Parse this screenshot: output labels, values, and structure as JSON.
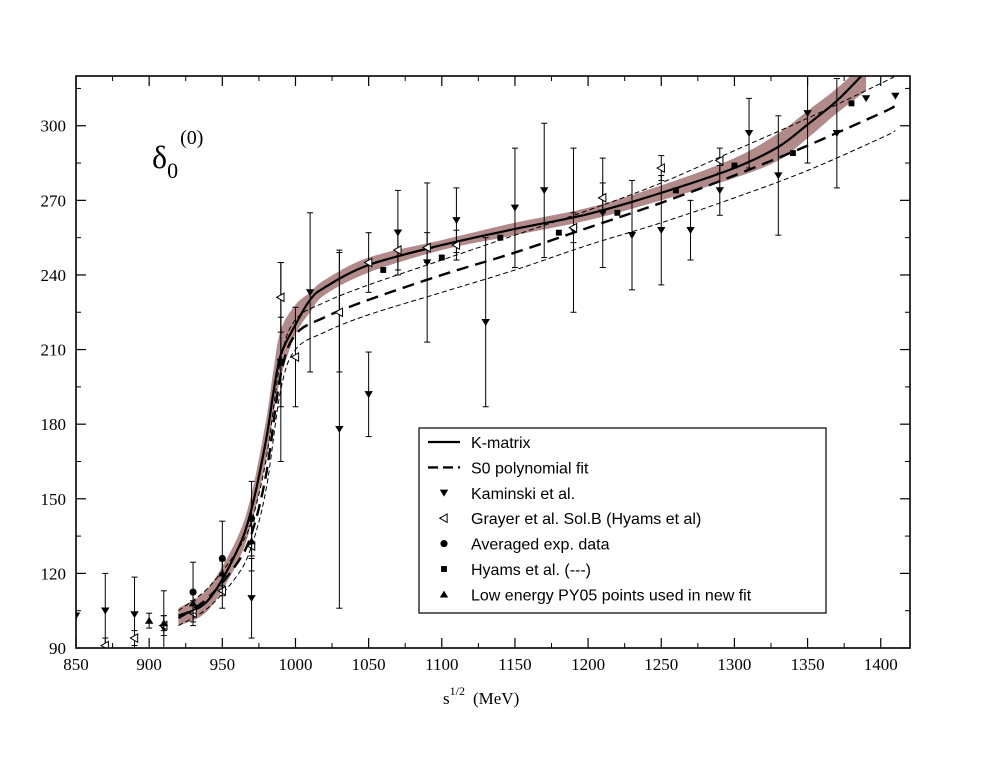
{
  "chart_data": {
    "type": "scatter",
    "title": "δ0(0)",
    "title_main": "δ",
    "title_sub": "0",
    "title_sup": "(0)",
    "xlabel_base": "s",
    "xlabel_sup": "1/2",
    "xlabel_unit": "(MeV)",
    "ylabel": "",
    "xlim": [
      850,
      1420
    ],
    "ylim": [
      90,
      320
    ],
    "xticks": [
      850,
      900,
      950,
      1000,
      1050,
      1100,
      1150,
      1200,
      1250,
      1300,
      1350,
      1400
    ],
    "yticks": [
      90,
      120,
      150,
      180,
      210,
      240,
      270,
      300
    ],
    "grid": false,
    "legend_position": "bottom-right",
    "band": {
      "name": "K-matrix uncertainty band",
      "color": "#a57575",
      "x": [
        920,
        940,
        960,
        970,
        980,
        985,
        990,
        1000,
        1010,
        1020,
        1050,
        1100,
        1150,
        1200,
        1250,
        1300,
        1330,
        1350,
        1370,
        1390
      ],
      "upper": [
        106,
        114,
        134,
        152,
        182,
        202,
        218,
        228,
        233,
        238,
        247,
        254,
        261,
        267,
        276,
        287,
        297,
        306,
        315,
        326
      ],
      "lower": [
        99,
        105,
        124,
        140,
        166,
        184,
        199,
        216,
        225,
        232,
        241,
        250,
        256,
        262,
        270,
        279,
        286,
        295,
        305,
        314
      ]
    },
    "series": [
      {
        "name": "K-matrix",
        "style": "solid-line",
        "x": [
          920,
          940,
          960,
          970,
          980,
          985,
          990,
          1000,
          1010,
          1020,
          1050,
          1100,
          1150,
          1200,
          1250,
          1300,
          1330,
          1350,
          1370,
          1390
        ],
        "y": [
          103,
          109,
          129,
          146,
          174,
          193,
          208,
          220,
          230,
          235,
          244,
          252,
          258.5,
          264.5,
          273,
          283,
          291.5,
          300.5,
          310,
          322
        ]
      },
      {
        "name": "S0 polynomial fit",
        "style": "dashed-line",
        "x": [
          920,
          940,
          960,
          970,
          980,
          990,
          1000,
          1020,
          1050,
          1100,
          1150,
          1200,
          1250,
          1300,
          1350,
          1400,
          1410
        ],
        "y": [
          102,
          110,
          124,
          136,
          160,
          200,
          216,
          223,
          230,
          240,
          249,
          259,
          269,
          280,
          292,
          305,
          308
        ]
      },
      {
        "name": "S0 polynomial fit upper bound",
        "style": "thin-dashed-line",
        "x": [
          920,
          940,
          960,
          970,
          980,
          990,
          1000,
          1020,
          1050,
          1100,
          1150,
          1200,
          1250,
          1300,
          1350,
          1400,
          1410
        ],
        "y": [
          105,
          114,
          129,
          141,
          166,
          206,
          222,
          229,
          236,
          246,
          256,
          266,
          277,
          290,
          303,
          317,
          320
        ]
      },
      {
        "name": "S0 polynomial fit lower bound",
        "style": "thin-dashed-line",
        "x": [
          920,
          940,
          960,
          970,
          980,
          990,
          1000,
          1020,
          1050,
          1100,
          1150,
          1200,
          1250,
          1300,
          1350,
          1400,
          1410
        ],
        "y": [
          99,
          106,
          119,
          131,
          154,
          194,
          210,
          217,
          224,
          233,
          242,
          252,
          261,
          271,
          282,
          295,
          298
        ]
      },
      {
        "name": "Kaminski et al.",
        "style": "marker",
        "marker": "triangle-down",
        "x": [
          850,
          870,
          890,
          910,
          970,
          990,
          1010,
          1030,
          1050,
          1070,
          1090,
          1110,
          1130,
          1150,
          1170,
          1190,
          1210,
          1230,
          1250,
          1270,
          1290,
          1310,
          1330,
          1350,
          1370,
          1390,
          1410
        ],
        "y": [
          103,
          105,
          103.5,
          98,
          110,
          205,
          233,
          178,
          192,
          257,
          245,
          262,
          221,
          267,
          274,
          258,
          265,
          256,
          258,
          258,
          274,
          297,
          280,
          305,
          297,
          311,
          312
        ],
        "err": [
          0,
          15,
          15,
          15,
          16,
          40,
          32,
          72,
          17,
          17,
          32,
          13,
          34,
          24,
          27,
          33,
          22,
          22,
          22,
          12,
          10,
          14,
          24,
          20,
          22,
          0,
          0
        ]
      },
      {
        "name": "Grayer et al. Sol.B (Hyams et al)",
        "style": "marker",
        "marker": "triangle-left-open",
        "x": [
          870,
          890,
          910,
          930,
          950,
          970,
          990,
          1000,
          1030,
          1050,
          1070,
          1090,
          1110,
          1190,
          1210,
          1250,
          1290
        ],
        "y": [
          91,
          94,
          99,
          104,
          113,
          131,
          231,
          207,
          225,
          245,
          250,
          251,
          252,
          259,
          271,
          283,
          286
        ],
        "err": [
          3,
          3,
          4,
          5,
          7,
          10,
          14,
          20,
          24,
          12,
          8,
          6,
          6,
          6,
          6,
          5,
          5
        ]
      },
      {
        "name": "Averaged exp. data",
        "style": "marker",
        "marker": "circle",
        "x": [
          930,
          950,
          970,
          990
        ],
        "y": [
          112.5,
          126,
          142,
          205
        ],
        "err": [
          12,
          15,
          15,
          18
        ]
      },
      {
        "name": "Hyams et al. (---)",
        "style": "marker",
        "marker": "square",
        "x": [
          1060,
          1100,
          1140,
          1180,
          1220,
          1260,
          1300,
          1340,
          1380
        ],
        "y": [
          242,
          247,
          255,
          257,
          265,
          274,
          284,
          289,
          309
        ],
        "err": [
          0,
          0,
          0,
          0,
          0,
          0,
          0,
          0,
          0
        ]
      },
      {
        "name": "Low energy PY05 points used in new fit",
        "style": "marker",
        "marker": "triangle-up",
        "x": [
          900,
          910,
          930,
          950,
          970
        ],
        "y": [
          101,
          100,
          108,
          120,
          133
        ],
        "err": [
          3,
          3,
          4,
          5,
          6
        ]
      }
    ],
    "legend": [
      {
        "label": "K-matrix",
        "symbol": "solid-line"
      },
      {
        "label": "S0 polynomial fit",
        "symbol": "dashed-line"
      },
      {
        "label": "Kaminski et al.",
        "symbol": "triangle-down"
      },
      {
        "label": "Grayer et al. Sol.B (Hyams et al)",
        "symbol": "triangle-left-open"
      },
      {
        "label": "Averaged exp. data",
        "symbol": "circle"
      },
      {
        "label": "Hyams et al. (---)",
        "symbol": "square"
      },
      {
        "label": "Low energy PY05 points used in new fit",
        "symbol": "triangle-up"
      }
    ]
  }
}
